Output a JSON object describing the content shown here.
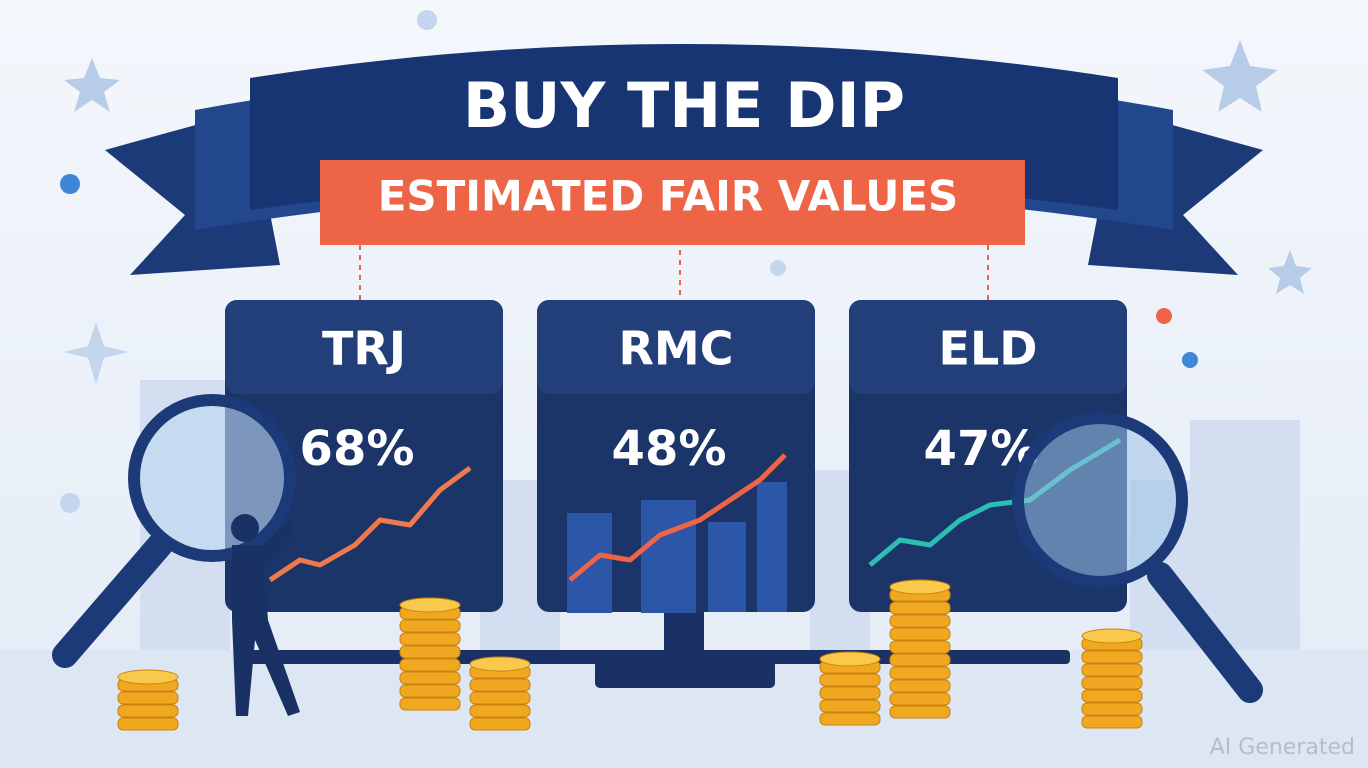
{
  "header": {
    "title": "BUY THE DIP",
    "subtitle": "ESTIMATED FAIR VALUES"
  },
  "cards": [
    {
      "ticker": "TRJ",
      "value": "68%"
    },
    {
      "ticker": "RMC",
      "value": "48%"
    },
    {
      "ticker": "ELD",
      "value": "47%"
    }
  ],
  "watermark": "AI Generated"
}
